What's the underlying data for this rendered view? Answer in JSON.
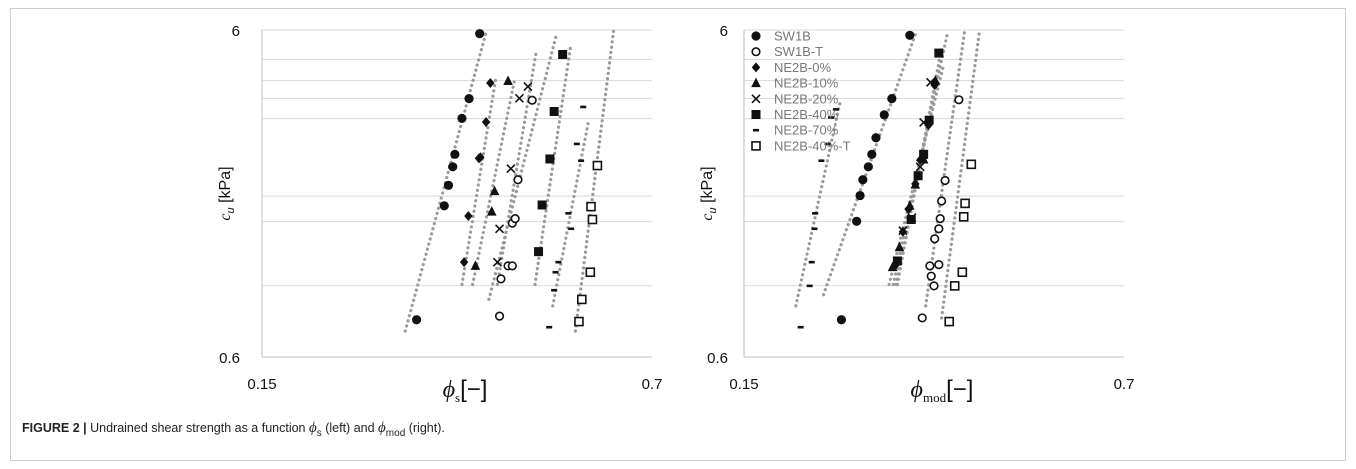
{
  "caption": {
    "figure": "FIGURE 2 |",
    "pre": " Undrained shear strength as a function ",
    "sym_left": "ϕ",
    "sub_left": "s",
    "mid": " (left) and ",
    "sym_right": "ϕ",
    "sub_right": "mod",
    "post": " (right)."
  },
  "chart_data": [
    {
      "type": "scatter",
      "x_scale": "linear",
      "y_scale": "log",
      "xlim": [
        0.15,
        0.7
      ],
      "ylim": [
        0.6,
        6
      ],
      "x_ticks": [
        "0.15",
        "0.7"
      ],
      "y_ticks": [
        "6",
        "0.6"
      ],
      "xlabel": {
        "symbol": "ϕ",
        "sub": "s",
        "unit": "[−]"
      },
      "ylabel": {
        "symbol": "c",
        "sub": "u",
        "unit": " [kPa]"
      },
      "grid": "horizontal",
      "series": [
        {
          "name": "SW1B",
          "marker": "circle-filled",
          "x": [
            0.368,
            0.407,
            0.413,
            0.419,
            0.422,
            0.432,
            0.442,
            0.457
          ],
          "y": [
            0.78,
            1.74,
            2.01,
            2.29,
            2.5,
            3.22,
            3.7,
            5.85
          ],
          "trend": [
            [
              0.352,
              0.72
            ],
            [
              0.466,
              5.9
            ]
          ]
        },
        {
          "name": "SW1B-T",
          "marker": "circle-open",
          "x": [
            0.485,
            0.487,
            0.497,
            0.503,
            0.503,
            0.507,
            0.511,
            0.531
          ],
          "y": [
            0.8,
            1.04,
            1.14,
            1.14,
            1.54,
            1.59,
            2.09,
            3.66
          ],
          "trend": [
            [
              0.47,
              0.9
            ],
            [
              0.566,
              5.9
            ]
          ]
        },
        {
          "name": "NE2B-0%",
          "marker": "diamond-filled",
          "x": [
            0.435,
            0.441,
            0.456,
            0.458,
            0.466,
            0.472
          ],
          "y": [
            1.17,
            1.62,
            2.43,
            2.45,
            3.14,
            4.13
          ],
          "trend": [
            [
              0.432,
              1.0
            ],
            [
              0.48,
              4.3
            ]
          ]
        },
        {
          "name": "NE2B-10%",
          "marker": "triangle-filled",
          "x": [
            0.451,
            0.474,
            0.478,
            0.497
          ],
          "y": [
            1.14,
            1.67,
            1.93,
            4.19
          ],
          "trend": [
            [
              0.447,
              1.0
            ],
            [
              0.507,
              4.3
            ]
          ]
        },
        {
          "name": "NE2B-20%",
          "marker": "x",
          "x": [
            0.482,
            0.485,
            0.501,
            0.513,
            0.525
          ],
          "y": [
            1.17,
            1.48,
            2.26,
            3.71,
            4.03
          ],
          "trend": [
            [
              0.482,
              1.0
            ],
            [
              0.537,
              5.2
            ]
          ]
        },
        {
          "name": "NE2B-40%",
          "marker": "square-filled",
          "x": [
            0.54,
            0.545,
            0.556,
            0.562,
            0.574
          ],
          "y": [
            1.26,
            1.75,
            2.42,
            3.38,
            5.05
          ],
          "trend": [
            [
              0.535,
              1.0
            ],
            [
              0.585,
              5.3
            ]
          ]
        },
        {
          "name": "NE2B-70%",
          "marker": "dash",
          "x": [
            0.555,
            0.562,
            0.564,
            0.568,
            0.582,
            0.586,
            0.594,
            0.6,
            0.603
          ],
          "y": [
            0.74,
            0.96,
            1.09,
            1.17,
            1.65,
            1.48,
            2.69,
            2.39,
            3.49
          ],
          "trend": [
            [
              0.56,
              0.86
            ],
            [
              0.611,
              3.2
            ]
          ]
        },
        {
          "name": "NE2B-40%-T",
          "marker": "square-open",
          "x": [
            0.597,
            0.601,
            0.613,
            0.616,
            0.614,
            0.623
          ],
          "y": [
            0.77,
            0.9,
            1.09,
            1.58,
            1.73,
            2.31
          ],
          "trend": [
            [
              0.592,
              0.72
            ],
            [
              0.646,
              6.0
            ]
          ]
        }
      ]
    },
    {
      "type": "scatter",
      "x_scale": "linear",
      "y_scale": "log",
      "xlim": [
        0.15,
        0.7
      ],
      "ylim": [
        0.6,
        6
      ],
      "x_ticks": [
        "0.15",
        "0.7"
      ],
      "y_ticks": [
        "6",
        "0.6"
      ],
      "xlabel": {
        "symbol": "ϕ",
        "sub": "mod",
        "unit": "[−]"
      },
      "ylabel": {
        "symbol": "c",
        "sub": "u",
        "unit": " [kPa]"
      },
      "grid": "horizontal",
      "legend_position": "top-left",
      "series": [
        {
          "name": "SW1B",
          "marker": "circle-filled",
          "x": [
            0.291,
            0.313,
            0.318,
            0.322,
            0.33,
            0.335,
            0.341,
            0.353,
            0.364,
            0.39
          ],
          "y": [
            0.78,
            1.56,
            1.87,
            2.09,
            2.29,
            2.5,
            2.81,
            3.3,
            3.7,
            5.78
          ],
          "trend": [
            [
              0.265,
              0.93
            ],
            [
              0.399,
              5.9
            ]
          ]
        },
        {
          "name": "SW1B-T",
          "marker": "circle-open",
          "x": [
            0.408,
            0.425,
            0.421,
            0.419,
            0.432,
            0.426,
            0.432,
            0.434,
            0.436,
            0.441,
            0.461
          ],
          "y": [
            0.79,
            0.99,
            1.06,
            1.14,
            1.15,
            1.38,
            1.48,
            1.59,
            1.8,
            2.08,
            3.67
          ],
          "trend": [
            [
              0.413,
              0.86
            ],
            [
              0.469,
              5.9
            ]
          ]
        },
        {
          "name": "NE2B-0%",
          "marker": "diamond-filled",
          "x": [
            0.37,
            0.38,
            0.388,
            0.398,
            0.405,
            0.41,
            0.417,
            0.426
          ],
          "y": [
            1.15,
            1.45,
            1.7,
            2.03,
            2.4,
            2.45,
            3.07,
            4.07
          ],
          "trend": [
            [
              0.37,
              1.0
            ],
            [
              0.433,
              4.6
            ]
          ]
        },
        {
          "name": "NE2B-10%",
          "marker": "triangle-filled",
          "x": [
            0.365,
            0.375,
            0.39,
            0.398,
            0.41,
            0.427
          ],
          "y": [
            1.13,
            1.3,
            1.74,
            2.02,
            2.41,
            4.2
          ],
          "trend": [
            [
              0.36,
              1.0
            ],
            [
              0.438,
              4.6
            ]
          ]
        },
        {
          "name": "NE2B-20%",
          "marker": "x",
          "x": [
            0.38,
            0.393,
            0.405,
            0.41,
            0.42
          ],
          "y": [
            1.46,
            1.6,
            2.29,
            3.13,
            4.15
          ],
          "trend": [
            [
              0.372,
              1.0
            ],
            [
              0.436,
              5.3
            ]
          ]
        },
        {
          "name": "NE2B-40%",
          "marker": "square-filled",
          "x": [
            0.372,
            0.392,
            0.402,
            0.41,
            0.418,
            0.432
          ],
          "y": [
            1.18,
            1.58,
            2.15,
            2.5,
            3.18,
            5.1
          ],
          "trend": [
            [
              0.366,
              1.0
            ],
            [
              0.444,
              5.8
            ]
          ]
        },
        {
          "name": "NE2B-70%",
          "marker": "dash",
          "x": [
            0.232,
            0.245,
            0.248,
            0.252,
            0.253,
            0.262,
            0.271,
            0.276,
            0.283
          ],
          "y": [
            0.74,
            0.99,
            1.17,
            1.48,
            1.65,
            2.39,
            2.69,
            3.24,
            3.43
          ],
          "trend": [
            [
              0.225,
              0.86
            ],
            [
              0.289,
              3.6
            ]
          ]
        },
        {
          "name": "NE2B-40%-T",
          "marker": "square-open",
          "x": [
            0.447,
            0.455,
            0.466,
            0.468,
            0.47,
            0.479
          ],
          "y": [
            0.77,
            0.99,
            1.09,
            1.61,
            1.77,
            2.33
          ],
          "trend": [
            [
              0.436,
              0.79
            ],
            [
              0.491,
              6.0
            ]
          ]
        }
      ]
    }
  ]
}
